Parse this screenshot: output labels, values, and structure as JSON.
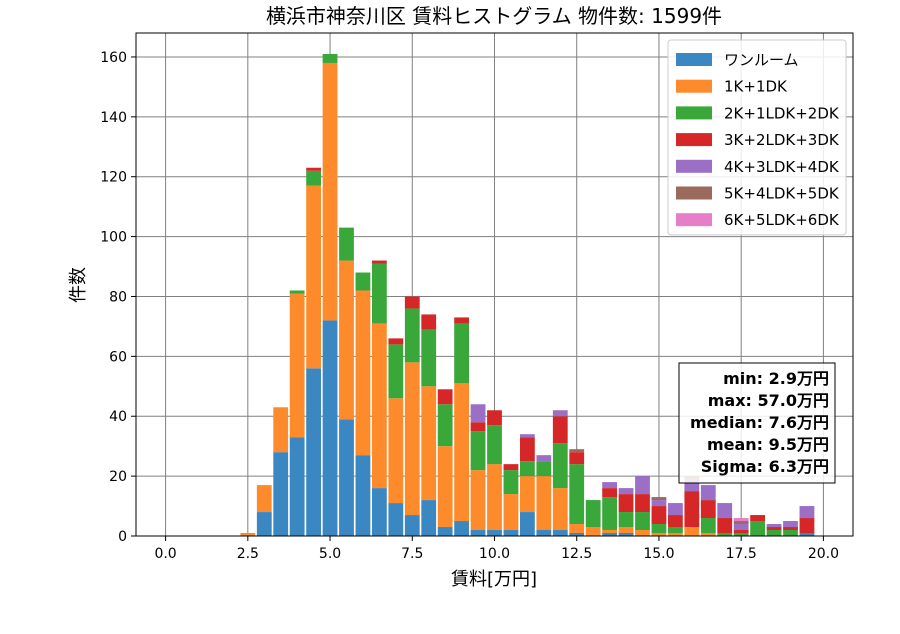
{
  "chart_data": {
    "type": "bar",
    "stacked": true,
    "title": "横浜市神奈川区 賃料ヒストグラム 物件数: 1599件",
    "xlabel": "賃料[万円]",
    "ylabel": "件数",
    "xlim": [
      -0.9,
      20.9
    ],
    "ylim": [
      0,
      168
    ],
    "xticks": [
      0.0,
      2.5,
      5.0,
      7.5,
      10.0,
      12.5,
      15.0,
      17.5,
      20.0
    ],
    "xtick_labels": [
      "0.0",
      "2.5",
      "5.0",
      "7.5",
      "10.0",
      "12.5",
      "15.0",
      "17.5",
      "20.0"
    ],
    "yticks": [
      0,
      20,
      40,
      60,
      80,
      100,
      120,
      140,
      160
    ],
    "ytick_labels": [
      "0",
      "20",
      "40",
      "60",
      "80",
      "100",
      "120",
      "140",
      "160"
    ],
    "grid": true,
    "legend_position": "top-right",
    "bin_width": 0.5,
    "x": [
      2.5,
      3.0,
      3.5,
      4.0,
      4.5,
      5.0,
      5.5,
      6.0,
      6.5,
      7.0,
      7.5,
      8.0,
      8.5,
      9.0,
      9.5,
      10.0,
      10.5,
      11.0,
      11.5,
      12.0,
      12.5,
      13.0,
      13.5,
      14.0,
      14.5,
      15.0,
      15.5,
      16.0,
      16.5,
      17.0,
      17.5,
      18.0,
      18.5,
      19.0,
      19.5
    ],
    "series": [
      {
        "name": "ワンルーム",
        "color": "#3a87c2",
        "values": [
          0,
          8,
          28,
          33,
          56,
          72,
          39,
          27,
          16,
          11,
          7,
          12,
          3,
          5,
          2,
          2,
          2,
          8,
          2,
          2,
          1,
          0,
          1,
          1,
          0,
          0,
          0,
          0,
          0,
          0,
          0,
          0,
          0,
          0,
          1
        ]
      },
      {
        "name": "1K+1DK",
        "color": "#fd8b2b",
        "values": [
          1,
          9,
          15,
          48,
          61,
          86,
          53,
          55,
          55,
          35,
          51,
          38,
          27,
          46,
          20,
          22,
          12,
          12,
          18,
          14,
          3,
          3,
          1,
          2,
          2,
          1,
          1,
          3,
          1,
          0,
          0,
          0,
          0,
          0,
          0
        ]
      },
      {
        "name": "2K+1LDK+2DK",
        "color": "#3aa73a",
        "values": [
          0,
          0,
          0,
          1,
          5,
          3,
          11,
          6,
          20,
          18,
          18,
          19,
          14,
          20,
          13,
          13,
          8,
          5,
          5,
          15,
          20,
          9,
          11,
          5,
          6,
          3,
          2,
          0,
          5,
          1,
          1,
          5,
          2,
          2,
          0
        ]
      },
      {
        "name": "3K+2LDK+3DK",
        "color": "#d62728",
        "values": [
          0,
          0,
          0,
          0,
          1,
          0,
          0,
          0,
          1,
          2,
          4,
          5,
          5,
          2,
          3,
          5,
          2,
          8,
          0,
          9,
          4,
          0,
          3,
          6,
          6,
          6,
          4,
          12,
          6,
          5,
          1,
          2,
          1,
          1,
          5
        ]
      },
      {
        "name": "4K+3LDK+4DK",
        "color": "#9a6fc5",
        "values": [
          0,
          0,
          0,
          0,
          0,
          0,
          0,
          0,
          0,
          0,
          0,
          0,
          0,
          0,
          6,
          0,
          0,
          1,
          2,
          2,
          0,
          0,
          2,
          2,
          6,
          2,
          4,
          4,
          5,
          5,
          2,
          0,
          1,
          2,
          4
        ]
      },
      {
        "name": "5K+4LDK+5DK",
        "color": "#9b6a5d",
        "values": [
          0,
          0,
          0,
          0,
          0,
          0,
          0,
          0,
          0,
          0,
          0,
          0,
          0,
          0,
          0,
          0,
          0,
          0,
          0,
          0,
          1,
          0,
          0,
          0,
          0,
          1,
          0,
          1,
          0,
          0,
          1,
          0,
          0,
          0,
          0
        ]
      },
      {
        "name": "6K+5LDK+6DK",
        "color": "#e580c8",
        "values": [
          0,
          0,
          0,
          0,
          0,
          0,
          0,
          0,
          0,
          0,
          0,
          0,
          0,
          0,
          0,
          0,
          0,
          0,
          0,
          0,
          0,
          0,
          0,
          0,
          0,
          0,
          0,
          0,
          0,
          0,
          1,
          0,
          0,
          0,
          0
        ]
      }
    ],
    "stats_box": {
      "position": "right",
      "lines": [
        "min: 2.9万円",
        "max: 57.0万円",
        "median: 7.6万円",
        "mean: 9.5万円",
        "Sigma: 6.3万円"
      ]
    }
  }
}
